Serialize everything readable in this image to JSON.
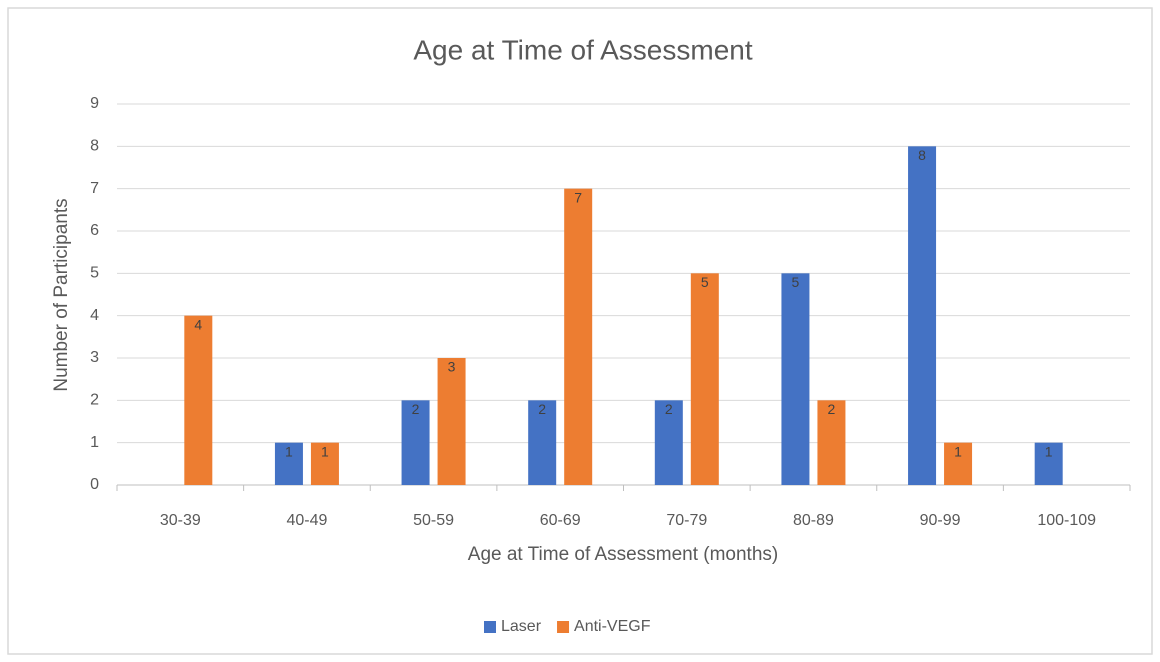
{
  "chart_data": {
    "type": "bar",
    "title": "Age at Time of Assessment",
    "x_label": "Age at Time of Assessment (months)",
    "y_label": "Number of Participants",
    "categories": [
      "30-39",
      "40-49",
      "50-59",
      "60-69",
      "70-79",
      "80-89",
      "90-99",
      "100-109"
    ],
    "series": [
      {
        "name": "Laser",
        "color": "#4472c4",
        "values": [
          0,
          1,
          2,
          2,
          2,
          5,
          8,
          1
        ]
      },
      {
        "name": "Anti-VEGF",
        "color": "#ed7d31",
        "values": [
          4,
          1,
          3,
          7,
          5,
          2,
          1,
          0
        ]
      }
    ],
    "ylim": [
      0,
      9
    ],
    "yticks": [
      0,
      1,
      2,
      3,
      4,
      5,
      6,
      7,
      8,
      9
    ],
    "grid": true,
    "legend": "bottom"
  }
}
